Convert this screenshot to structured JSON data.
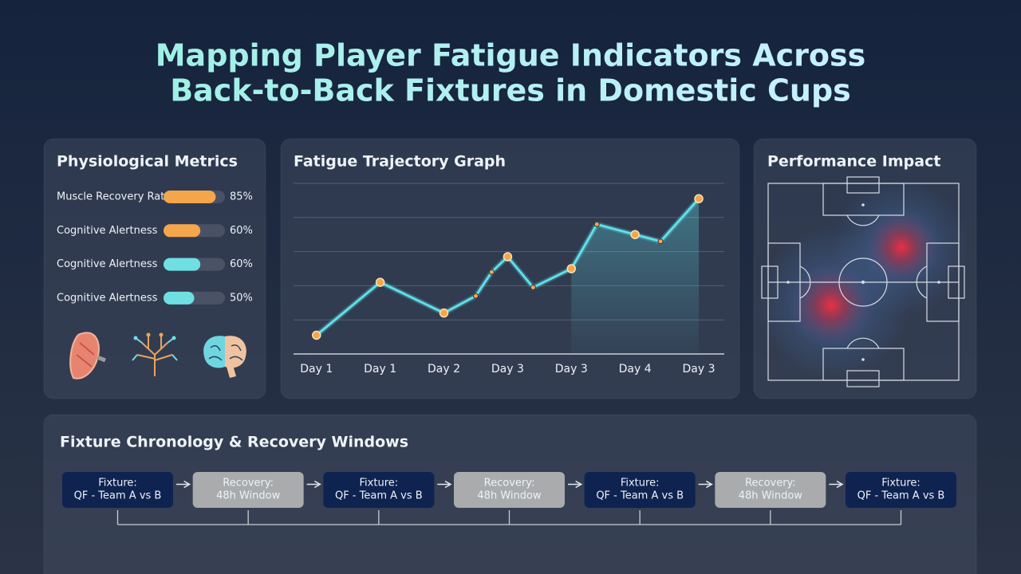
{
  "title_lines": [
    "Mapping Player Fatigue Indicators Across",
    "Back-to-Back Fixtures in Domestic Cups"
  ],
  "metrics": {
    "title": "Physiological Metrics",
    "items": [
      {
        "label": "Muscle Recovery Rate",
        "value": 85,
        "value_label": "85%",
        "color": "#f5a54a"
      },
      {
        "label": "Cognitive Alertness",
        "value": 60,
        "value_label": "60%",
        "color": "#f5a54a"
      },
      {
        "label": "Cognitive Alertness",
        "value": 60,
        "value_label": "60%",
        "color": "#6fdfe3"
      },
      {
        "label": "Cognitive Alertness",
        "value": 50,
        "value_label": "50%",
        "color": "#6fdfe3"
      }
    ]
  },
  "chart_data": {
    "type": "line",
    "title": "Fatigue Trajectory Graph",
    "x": [
      0,
      1,
      2,
      2.5,
      2.75,
      3,
      3.4,
      4,
      4.4,
      5,
      5.4,
      6
    ],
    "values": [
      11,
      42,
      24,
      34,
      48,
      57,
      39,
      50,
      76,
      70,
      66,
      91
    ],
    "color": "#5ee0e6",
    "marker_color": "#f5a54a",
    "xlim": [
      -0.36,
      6.4
    ],
    "xticks": [
      {
        "value": 0,
        "label": "Day 1"
      },
      {
        "value": 1,
        "label": "Day 1"
      },
      {
        "value": 2,
        "label": "Day 2"
      },
      {
        "value": 3,
        "label": "Day 3"
      },
      {
        "value": 4,
        "label": "Day 3"
      },
      {
        "value": 5,
        "label": "Day 4"
      },
      {
        "value": 6,
        "label": "Day 3"
      }
    ],
    "ylim": [
      0,
      100
    ],
    "yticks": [
      0,
      20,
      40,
      60,
      80,
      100
    ],
    "grid": true,
    "shaded_from_x": 4
  },
  "impact": {
    "title": "Performance Impact"
  },
  "fixtures": {
    "title": "Fixture Chronology & Recovery Windows",
    "steps": [
      {
        "kind": "fixture",
        "lines": [
          "Fixture:",
          "QF - Team A vs B"
        ]
      },
      {
        "kind": "recovery",
        "lines": [
          "Recovery:",
          "48h Window"
        ]
      },
      {
        "kind": "fixture",
        "lines": [
          "Fixture:",
          "QF - Team A vs B"
        ]
      },
      {
        "kind": "recovery",
        "lines": [
          "Recovery:",
          "48h Window"
        ]
      },
      {
        "kind": "fixture",
        "lines": [
          "Fixture:",
          "QF - Team A vs B"
        ]
      },
      {
        "kind": "recovery",
        "lines": [
          "Recovery:",
          "48h Window"
        ]
      },
      {
        "kind": "fixture",
        "lines": [
          "Fixture:",
          "QF - Team A vs B"
        ]
      }
    ]
  }
}
